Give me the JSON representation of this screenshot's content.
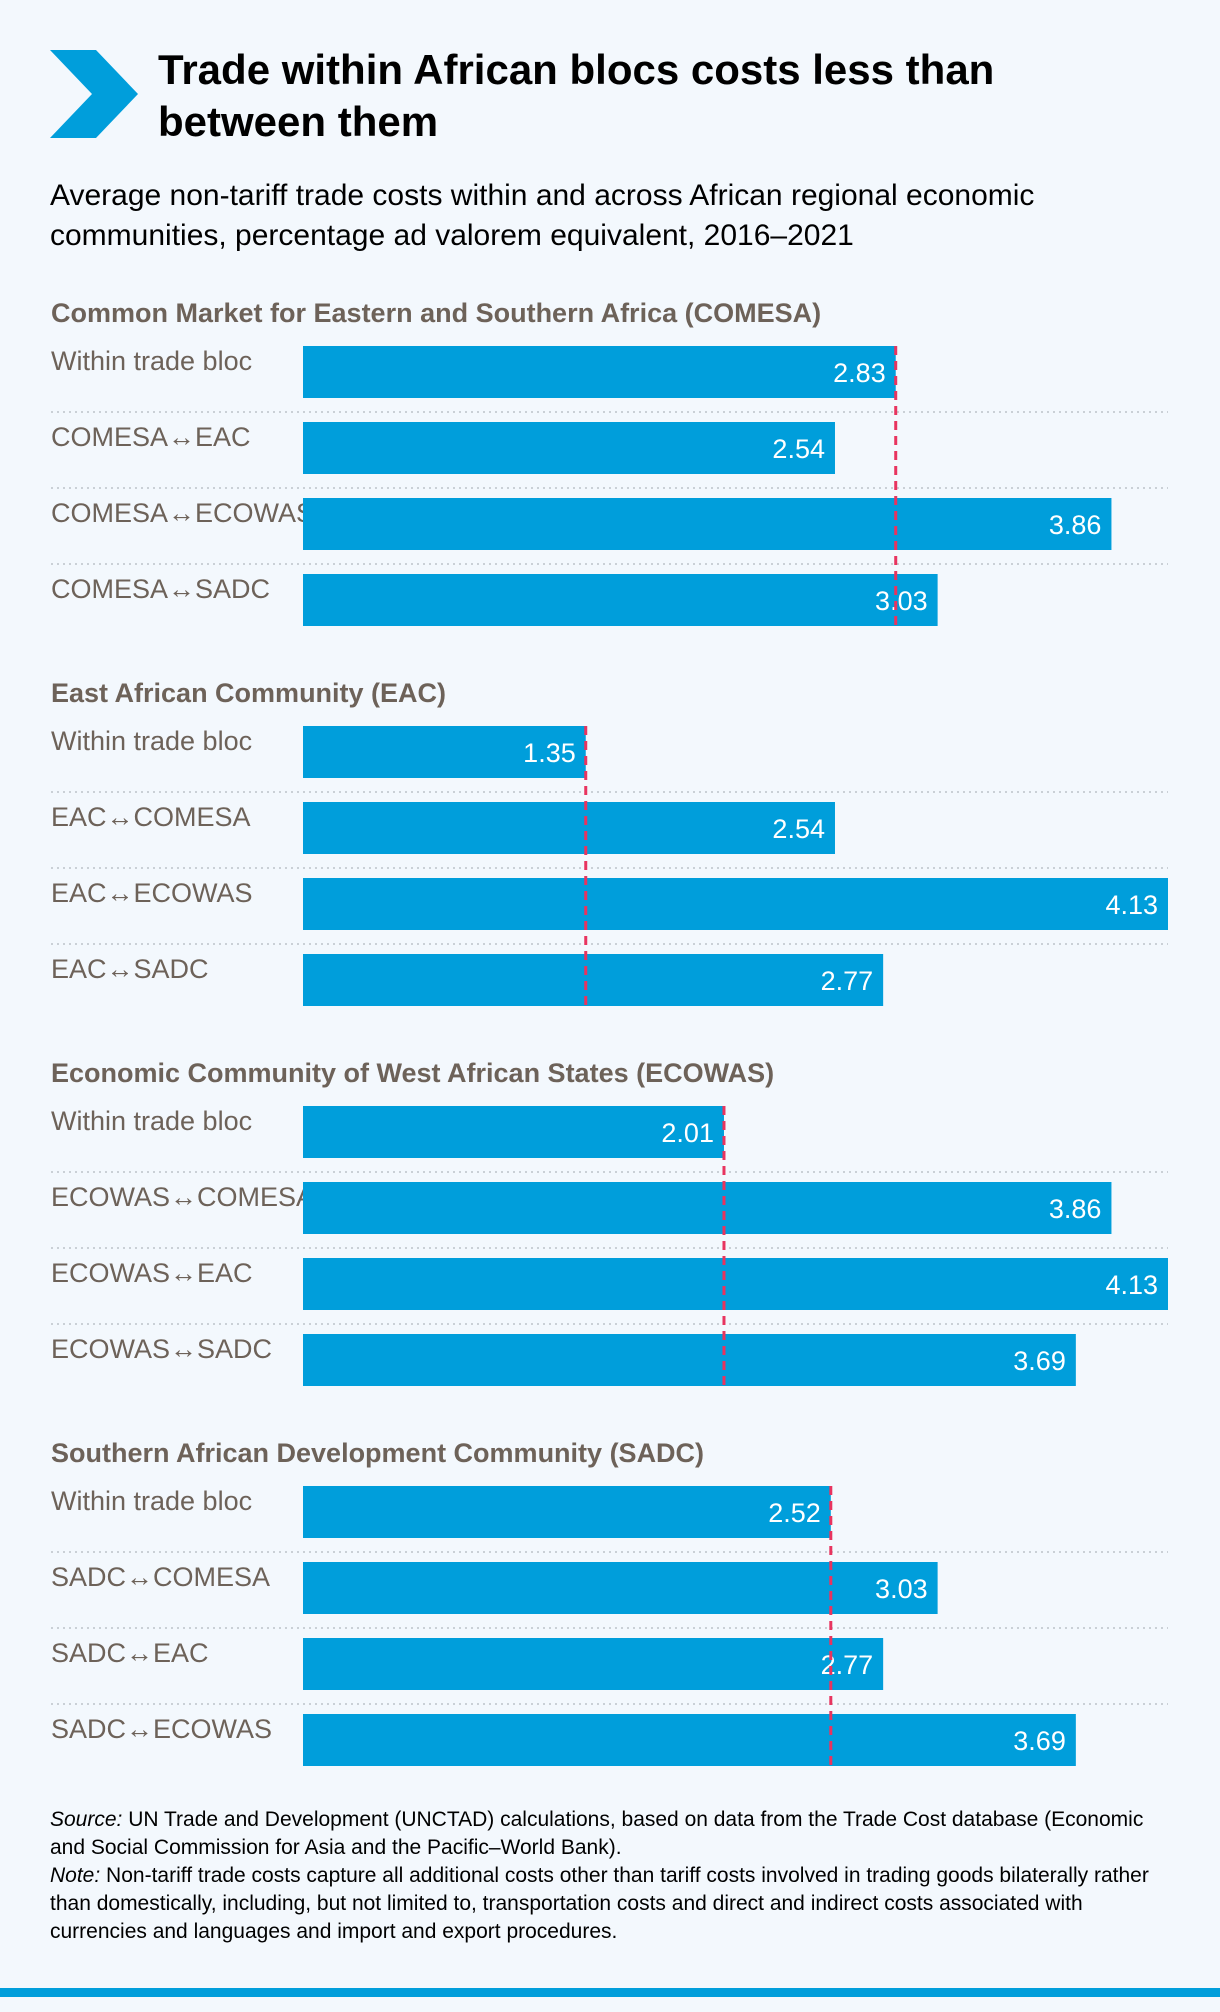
{
  "title": "Trade within African blocs costs less than between them",
  "subtitle": "Average non-tariff trade costs within and across African regional economic communities, percentage ad valorem equivalent, 2016–2021",
  "colors": {
    "bar": "#009edb",
    "reference_line": "#e8345f",
    "section_title": "#6d6259",
    "row_label": "#6d6259",
    "value_label": "#ffffff",
    "accent": "#009edb"
  },
  "chart_data": {
    "type": "bar",
    "orientation": "horizontal",
    "unit": "percentage ad valorem equivalent",
    "xlim": [
      0,
      4.13
    ],
    "reference_line": "within trade bloc value (dashed)",
    "groups": [
      {
        "title": "Common Market for Eastern and Southern Africa (COMESA)",
        "reference": 2.83,
        "rows": [
          {
            "label": "Within trade bloc",
            "value": 2.83,
            "display": "2.83"
          },
          {
            "label": "COMESA↔EAC",
            "value": 2.54,
            "display": "2.54"
          },
          {
            "label": "COMESA↔ECOWAS",
            "value": 3.86,
            "display": "3.86"
          },
          {
            "label": "COMESA↔SADC",
            "value": 3.03,
            "display": "3.03"
          }
        ]
      },
      {
        "title": "East African Community (EAC)",
        "reference": 1.35,
        "rows": [
          {
            "label": "Within trade bloc",
            "value": 1.35,
            "display": "1.35"
          },
          {
            "label": "EAC↔COMESA",
            "value": 2.54,
            "display": "2.54"
          },
          {
            "label": "EAC↔ECOWAS",
            "value": 4.13,
            "display": "4.13"
          },
          {
            "label": "EAC↔SADC",
            "value": 2.77,
            "display": "2.77"
          }
        ]
      },
      {
        "title": "Economic Community of West African States (ECOWAS)",
        "reference": 2.01,
        "rows": [
          {
            "label": "Within trade bloc",
            "value": 2.01,
            "display": "2.01"
          },
          {
            "label": "ECOWAS↔COMESA",
            "value": 3.86,
            "display": "3.86"
          },
          {
            "label": "ECOWAS↔EAC",
            "value": 4.13,
            "display": "4.13"
          },
          {
            "label": "ECOWAS↔SADC",
            "value": 3.69,
            "display": "3.69"
          }
        ]
      },
      {
        "title": "Southern African Development Community (SADC)",
        "reference": 2.52,
        "rows": [
          {
            "label": "Within trade bloc",
            "value": 2.52,
            "display": "2.52"
          },
          {
            "label": "SADC↔COMESA",
            "value": 3.03,
            "display": "3.03"
          },
          {
            "label": "SADC↔EAC",
            "value": 2.77,
            "display": "2.77"
          },
          {
            "label": "SADC↔ECOWAS",
            "value": 3.69,
            "display": "3.69"
          }
        ]
      }
    ]
  },
  "footnote": {
    "source_label": "Source:",
    "source_text": "UN Trade and Development (UNCTAD) calculations, based on data from the Trade Cost database (Economic and Social Commission for Asia and the Pacific–World Bank).",
    "note_label": "Note:",
    "note_text": "Non-tariff trade costs capture all additional costs other than tariff costs involved in trading goods bilaterally rather than domestically, including, but not limited to, transportation costs and direct and indirect costs associated with currencies and languages and import and export procedures."
  },
  "icons": {
    "header": "chevron-right-icon"
  }
}
